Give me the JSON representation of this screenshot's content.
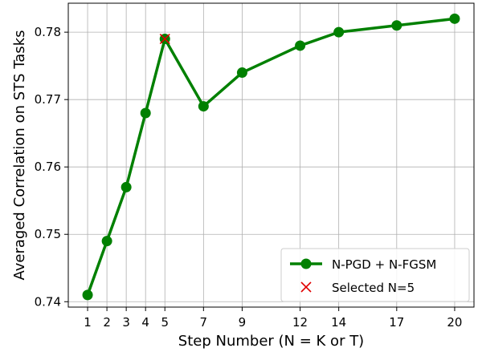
{
  "chart_data": {
    "type": "line",
    "xlabel": "Step Number (N = K or T)",
    "ylabel": "Averaged Correlation on STS Tasks",
    "x_ticks": [
      1,
      2,
      3,
      4,
      5,
      7,
      9,
      12,
      14,
      17,
      20
    ],
    "y_ticks": [
      0.74,
      0.75,
      0.76,
      0.77,
      0.78
    ],
    "y_tick_labels": [
      "0.74",
      "0.75",
      "0.76",
      "0.77",
      "0.78"
    ],
    "xlim": [
      0,
      21
    ],
    "ylim": [
      0.7392,
      0.7843
    ],
    "grid": true,
    "legend_position": "lower-right",
    "series": [
      {
        "name": "N-PGD + N-FGSM",
        "color": "#008000",
        "marker": "circle",
        "x": [
          1,
          2,
          3,
          4,
          5,
          7,
          9,
          12,
          14,
          17,
          20
        ],
        "y": [
          0.741,
          0.749,
          0.757,
          0.768,
          0.779,
          0.769,
          0.774,
          0.778,
          0.78,
          0.781,
          0.782
        ]
      }
    ],
    "highlight": {
      "name": "Selected N=5",
      "color": "#e00000",
      "marker": "x",
      "x": 5,
      "y": 0.779
    }
  }
}
